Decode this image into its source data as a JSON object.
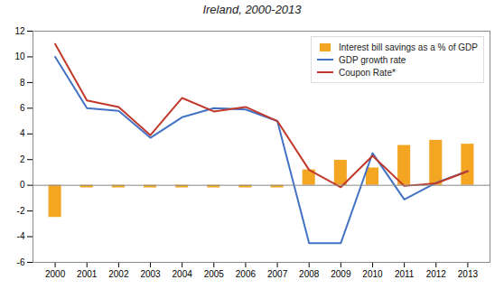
{
  "chart_data": {
    "type": "bar",
    "title": "Ireland, 2000-2013",
    "x": [
      2000,
      2001,
      2002,
      2003,
      2004,
      2005,
      2006,
      2007,
      2008,
      2009,
      2010,
      2011,
      2012,
      2013
    ],
    "series": [
      {
        "name": "Interest bill savings as a % of GDP",
        "type": "bar",
        "color": "#F4A622",
        "values": [
          -2.5,
          -0.2,
          -0.2,
          -0.2,
          -0.2,
          -0.2,
          -0.2,
          -0.2,
          1.2,
          1.95,
          1.35,
          3.1,
          3.5,
          3.2
        ]
      },
      {
        "name": "GDP growth rate",
        "type": "line",
        "color": "#4472C4",
        "values": [
          10.0,
          6.0,
          5.8,
          3.7,
          5.3,
          6.0,
          5.9,
          5.0,
          -4.5,
          -4.5,
          2.5,
          -1.1,
          0.2,
          1.1
        ]
      },
      {
        "name": "Coupon Rate*",
        "type": "line",
        "color": "#C0392B",
        "values": [
          11.0,
          6.6,
          6.1,
          3.9,
          6.8,
          5.75,
          6.1,
          5.0,
          1.2,
          -0.15,
          2.3,
          -0.05,
          0.15,
          1.1
        ]
      }
    ],
    "xlim": [
      1999.3,
      2013.7
    ],
    "xticks": [
      2000,
      2001,
      2002,
      2003,
      2004,
      2005,
      2006,
      2007,
      2008,
      2009,
      2010,
      2011,
      2012,
      2013
    ],
    "ylim": [
      -6,
      12
    ],
    "yticks": [
      -6,
      -4,
      -2,
      0,
      2,
      4,
      6,
      8,
      10,
      12
    ],
    "grid": false,
    "legend": "upper right"
  }
}
